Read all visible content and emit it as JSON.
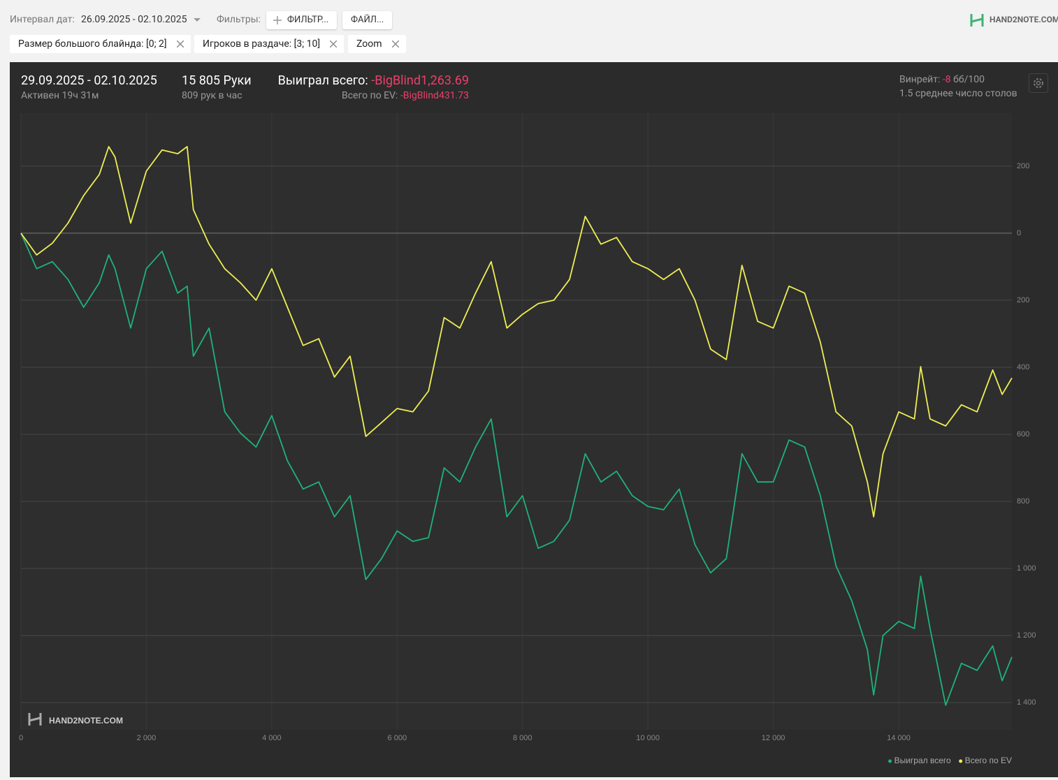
{
  "toolbar": {
    "date_label": "Интервал дат:",
    "date_range": "26.09.2025 - 02.10.2025",
    "filters_label": "Фильтры:",
    "filter_button": "ФИЛЬТР...",
    "file_button": "ФАЙЛ...",
    "logo": "HAND2NOTE.COM"
  },
  "chips": [
    "Размер большого блайнда: [0; 2]",
    "Игроков в раздаче: [3; 10]",
    "Zoom"
  ],
  "summary": {
    "period": "29.09.2025 - 02.10.2025",
    "active": "Активен 19ч 31м",
    "hands": "15 805 Руки",
    "hands_per_hour": "809 рук в час",
    "won_label": "Выиграл всего:",
    "won_value": "-BigBlind1,263.69",
    "ev_label": "Всего по EV:",
    "ev_value": "-BigBlind431.73",
    "winrate_label": "Винрейт:",
    "winrate_value": "-8",
    "winrate_unit": "бб/100",
    "tables": "1.5 среднее число столов"
  },
  "chart_data": {
    "type": "line",
    "watermark": "HAND2NOTE.COM",
    "x": [
      0,
      250,
      500,
      750,
      1000,
      1250,
      1400,
      1500,
      1750,
      2000,
      2250,
      2500,
      2650,
      2750,
      3000,
      3250,
      3500,
      3750,
      4000,
      4250,
      4500,
      4750,
      5000,
      5250,
      5500,
      5750,
      6000,
      6250,
      6500,
      6750,
      7000,
      7250,
      7500,
      7750,
      8000,
      8250,
      8500,
      8750,
      9000,
      9250,
      9500,
      9750,
      10000,
      10250,
      10500,
      10750,
      11000,
      11250,
      11500,
      11750,
      12000,
      12250,
      12500,
      12750,
      13000,
      13250,
      13500,
      13600,
      13750,
      14000,
      14250,
      14350,
      14500,
      14750,
      15000,
      15250,
      15500,
      15650,
      15805
    ],
    "series": [
      {
        "name": "Выиграл всего",
        "color": "#1fb27a",
        "values": [
          0,
          -106,
          -85,
          -138,
          -221,
          -148,
          -65,
          -106,
          -283,
          -106,
          -54,
          -179,
          -158,
          -367,
          -283,
          -533,
          -596,
          -638,
          -544,
          -679,
          -763,
          -742,
          -846,
          -783,
          -1033,
          -971,
          -888,
          -919,
          -908,
          -700,
          -742,
          -638,
          -554,
          -846,
          -783,
          -940,
          -919,
          -856,
          -658,
          -742,
          -710,
          -783,
          -815,
          -825,
          -763,
          -929,
          -1013,
          -971,
          -658,
          -742,
          -742,
          -617,
          -638,
          -783,
          -992,
          -1096,
          -1242,
          -1377,
          -1200,
          -1158,
          -1179,
          -1023,
          -1179,
          -1408,
          -1283,
          -1304,
          -1231,
          -1335,
          -1264
        ]
      },
      {
        "name": "Всего по EV",
        "color": "#eeee55",
        "values": [
          0,
          -65,
          -30,
          30,
          112,
          175,
          258,
          227,
          30,
          185,
          248,
          237,
          258,
          70,
          -33,
          -106,
          -148,
          -200,
          -106,
          -221,
          -335,
          -315,
          -429,
          -367,
          -606,
          -565,
          -523,
          -533,
          -471,
          -252,
          -283,
          -179,
          -85,
          -283,
          -242,
          -210,
          -200,
          -138,
          50,
          -33,
          -13,
          -85,
          -106,
          -138,
          -106,
          -200,
          -346,
          -377,
          -96,
          -263,
          -283,
          -158,
          -179,
          -325,
          -533,
          -575,
          -742,
          -846,
          -658,
          -533,
          -554,
          -398,
          -554,
          -575,
          -512,
          -533,
          -408,
          -481,
          -432
        ]
      }
    ],
    "xlim": [
      0,
      15805
    ],
    "xticks": [
      0,
      {
        "value": 2000,
        "label": "2 000"
      },
      {
        "value": 4000,
        "label": "4 000"
      },
      {
        "value": 6000,
        "label": "6 000"
      },
      {
        "value": 8000,
        "label": "8 000"
      },
      {
        "value": 10000,
        "label": "10 000"
      },
      {
        "value": 12000,
        "label": "12 000"
      },
      {
        "value": 14000,
        "label": "14 000"
      }
    ],
    "ylim": [
      -1481,
      358
    ],
    "yticks": [
      200,
      0,
      {
        "value": -200,
        "label": "200"
      },
      {
        "value": -400,
        "label": "400"
      },
      {
        "value": -600,
        "label": "600"
      },
      {
        "value": -800,
        "label": "800"
      },
      {
        "value": -1000,
        "label": "1 000"
      },
      {
        "value": -1200,
        "label": "1 200"
      },
      {
        "value": -1400,
        "label": "1 400"
      }
    ],
    "grid": true,
    "legend": "bottom-right"
  }
}
